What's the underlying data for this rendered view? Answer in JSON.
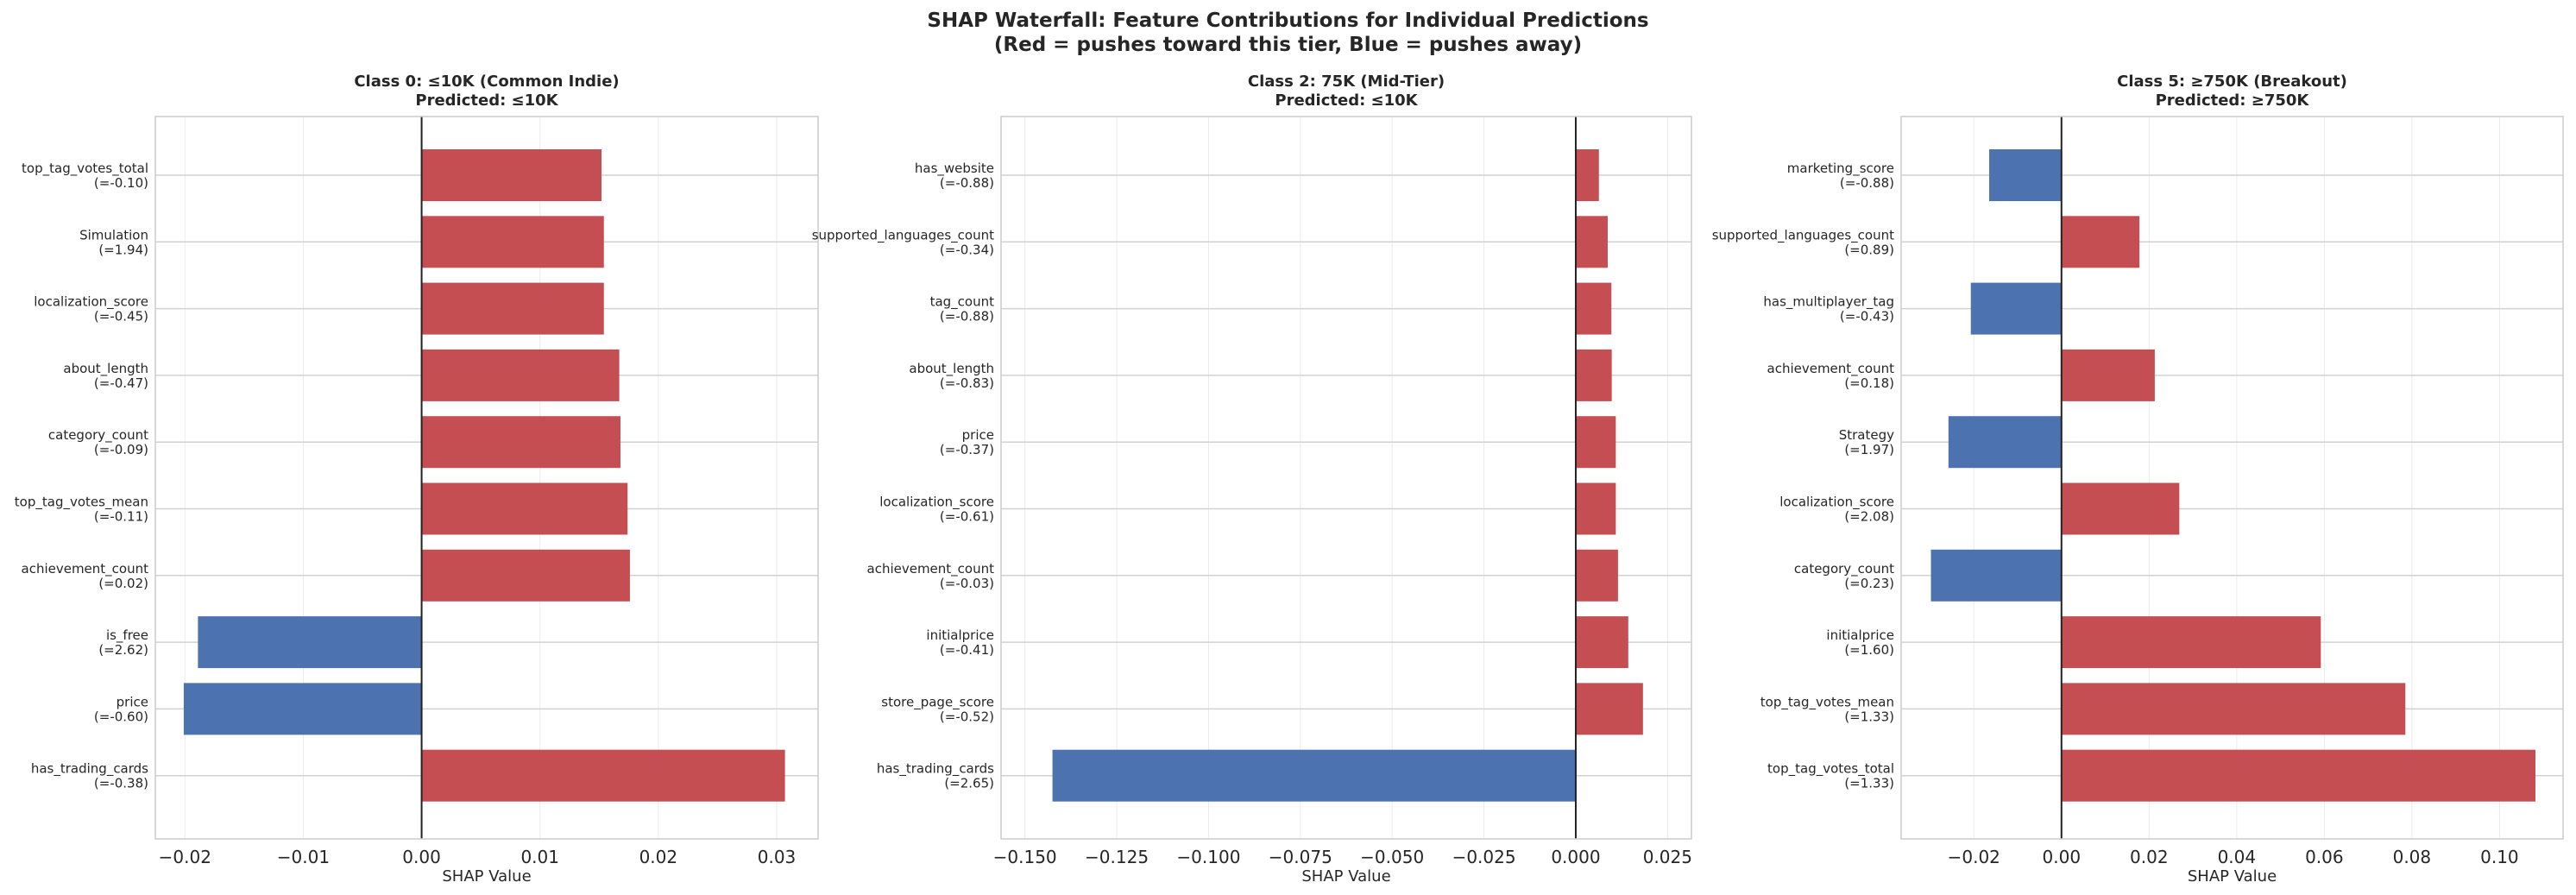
{
  "figure": {
    "title_line1": "SHAP Waterfall: Feature Contributions for Individual Predictions",
    "title_line2": "(Red = pushes toward this tier, Blue = pushes away)"
  },
  "colors": {
    "positive": "#c44e52",
    "negative": "#4c72b0",
    "grid": "#ebebeb",
    "spine": "#cccccc",
    "zero_line": "#222222"
  },
  "chart_data": [
    {
      "type": "bar",
      "orientation": "horizontal",
      "title": "Class 0: ≤10K (Common Indie)",
      "subtitle": "Predicted: ≤10K",
      "xlabel": "SHAP Value",
      "xlim": [
        -0.0225,
        0.0335
      ],
      "xticks": [
        -0.02,
        -0.01,
        0.0,
        0.01,
        0.02,
        0.03
      ],
      "xtick_labels": [
        "−0.02",
        "−0.01",
        "0.00",
        "0.01",
        "0.02",
        "0.03"
      ],
      "grid": true,
      "features": [
        {
          "name": "top_tag_votes_total",
          "value_label": "(=-0.10)",
          "shap": 0.0152
        },
        {
          "name": "Simulation",
          "value_label": "(=1.94)",
          "shap": 0.0154
        },
        {
          "name": "localization_score",
          "value_label": "(=-0.45)",
          "shap": 0.0154
        },
        {
          "name": "about_length",
          "value_label": "(=-0.47)",
          "shap": 0.0167
        },
        {
          "name": "category_count",
          "value_label": "(=-0.09)",
          "shap": 0.0168
        },
        {
          "name": "top_tag_votes_mean",
          "value_label": "(=-0.11)",
          "shap": 0.0174
        },
        {
          "name": "achievement_count",
          "value_label": "(=0.02)",
          "shap": 0.0176
        },
        {
          "name": "is_free",
          "value_label": "(=2.62)",
          "shap": -0.0189
        },
        {
          "name": "price",
          "value_label": "(=-0.60)",
          "shap": -0.0201
        },
        {
          "name": "has_trading_cards",
          "value_label": "(=-0.38)",
          "shap": 0.0307
        }
      ]
    },
    {
      "type": "bar",
      "orientation": "horizontal",
      "title": "Class 2: 75K (Mid-Tier)",
      "subtitle": "Predicted: ≤10K",
      "xlabel": "SHAP Value",
      "xlim": [
        -0.1565,
        0.0315
      ],
      "xticks": [
        -0.15,
        -0.125,
        -0.1,
        -0.075,
        -0.05,
        -0.025,
        0.0,
        0.025
      ],
      "xtick_labels": [
        "−0.150",
        "−0.125",
        "−0.100",
        "−0.075",
        "−0.050",
        "−0.025",
        "0.000",
        "0.025"
      ],
      "grid": true,
      "features": [
        {
          "name": "has_website",
          "value_label": "(=-0.88)",
          "shap": 0.0063
        },
        {
          "name": "supported_languages_count",
          "value_label": "(=-0.34)",
          "shap": 0.0087
        },
        {
          "name": "tag_count",
          "value_label": "(=-0.88)",
          "shap": 0.0097
        },
        {
          "name": "about_length",
          "value_label": "(=-0.83)",
          "shap": 0.0098
        },
        {
          "name": "price",
          "value_label": "(=-0.37)",
          "shap": 0.0109
        },
        {
          "name": "localization_score",
          "value_label": "(=-0.61)",
          "shap": 0.0109
        },
        {
          "name": "achievement_count",
          "value_label": "(=-0.03)",
          "shap": 0.0115
        },
        {
          "name": "initialprice",
          "value_label": "(=-0.41)",
          "shap": 0.0143
        },
        {
          "name": "store_page_score",
          "value_label": "(=-0.52)",
          "shap": 0.0183
        },
        {
          "name": "has_trading_cards",
          "value_label": "(=2.65)",
          "shap": -0.1425
        }
      ]
    },
    {
      "type": "bar",
      "orientation": "horizontal",
      "title": "Class 5: ≥750K (Breakout)",
      "subtitle": "Predicted: ≥750K",
      "xlabel": "SHAP Value",
      "xlim": [
        -0.0366,
        0.1145
      ],
      "xticks": [
        -0.02,
        0.0,
        0.02,
        0.04,
        0.06,
        0.08,
        0.1
      ],
      "xtick_labels": [
        "−0.02",
        "0.00",
        "0.02",
        "0.04",
        "0.06",
        "0.08",
        "0.10"
      ],
      "grid": true,
      "features": [
        {
          "name": "marketing_score",
          "value_label": "(=-0.88)",
          "shap": -0.0165
        },
        {
          "name": "supported_languages_count",
          "value_label": "(=0.89)",
          "shap": 0.0178
        },
        {
          "name": "has_multiplayer_tag",
          "value_label": "(=-0.43)",
          "shap": -0.0207
        },
        {
          "name": "achievement_count",
          "value_label": "(=0.18)",
          "shap": 0.0213
        },
        {
          "name": "Strategy",
          "value_label": "(=1.97)",
          "shap": -0.0258
        },
        {
          "name": "localization_score",
          "value_label": "(=2.08)",
          "shap": 0.0269
        },
        {
          "name": "category_count",
          "value_label": "(=0.23)",
          "shap": -0.0298
        },
        {
          "name": "initialprice",
          "value_label": "(=1.60)",
          "shap": 0.0592
        },
        {
          "name": "top_tag_votes_mean",
          "value_label": "(=1.33)",
          "shap": 0.0785
        },
        {
          "name": "top_tag_votes_total",
          "value_label": "(=1.33)",
          "shap": 0.1082
        }
      ]
    }
  ]
}
